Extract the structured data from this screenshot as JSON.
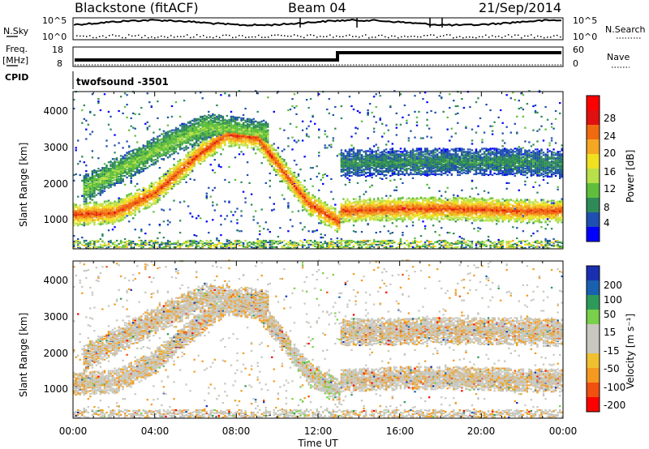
{
  "header": {
    "station": "Blackstone (fitACF)",
    "beam": "Beam 04",
    "date": "21/Sep/2014"
  },
  "strips": {
    "nsky": {
      "label": "N.Sky",
      "ticks": [
        "10^5",
        "10^0"
      ],
      "right_label": "N.Search",
      "right_ticks": [
        "10^5",
        "10^0"
      ]
    },
    "freq": {
      "label_line1": "Freq.",
      "label_line2": "[MHz]",
      "ticks": [
        "18",
        "8"
      ],
      "right_label": "Nave",
      "right_ticks": [
        "60",
        "0"
      ]
    },
    "cpid": {
      "label": "CPID",
      "value": "twofsound -3501"
    }
  },
  "chart_data": [
    {
      "type": "heatmap",
      "panel": "power",
      "title": "",
      "ylabel": "Slant Range [km]",
      "xlabel": "",
      "y_ticks": [
        "1000",
        "2000",
        "3000",
        "4000"
      ],
      "ylim": [
        180,
        4500
      ],
      "xlim_hours": [
        0,
        24
      ],
      "colorbar": {
        "label": "Power [dB]",
        "ticks": [
          "4",
          "8",
          "12",
          "16",
          "20",
          "24",
          "28"
        ],
        "range": [
          0,
          30
        ],
        "colors": [
          "#0000ff",
          "#1f4fb0",
          "#2e8b57",
          "#5fbf3c",
          "#b8e04a",
          "#f0e020",
          "#f5a623",
          "#f06a10",
          "#e01010",
          "#ff0000"
        ]
      },
      "echo_bands": [
        {
          "name": "near_range_band",
          "t_start": 0,
          "t_end": 13,
          "r_center": [
            1100,
            1150,
            1700,
            2700,
            3300,
            3200,
            1400,
            900
          ],
          "t_knots": [
            0,
            2,
            4,
            6,
            7.5,
            9,
            11.5,
            13
          ],
          "peak_db": 24
        },
        {
          "name": "high_range_band",
          "t_start": 0.5,
          "t_end": 9.5,
          "r_center": [
            1800,
            2400,
            3000,
            3500,
            3300
          ],
          "t_knots": [
            0.5,
            2.5,
            4.5,
            6.5,
            9.5
          ],
          "peak_db": 12
        },
        {
          "name": "afternoon_band",
          "t_start": 13,
          "t_end": 24,
          "r_center": [
            1200,
            1250,
            1250,
            1200,
            1200
          ],
          "t_knots": [
            13,
            16,
            19,
            22,
            24
          ],
          "peak_db": 24
        },
        {
          "name": "afternoon_upper",
          "t_start": 13,
          "t_end": 24,
          "r_center": [
            2500,
            2550,
            2550,
            2500
          ],
          "t_knots": [
            13,
            17,
            21,
            24
          ],
          "peak_db": 8
        }
      ]
    },
    {
      "type": "heatmap",
      "panel": "velocity",
      "title": "",
      "ylabel": "Slant Range [km]",
      "xlabel": "Time UT",
      "x_ticks": [
        "00:00",
        "04:00",
        "08:00",
        "12:00",
        "16:00",
        "20:00",
        "00:00"
      ],
      "y_ticks": [
        "1000",
        "2000",
        "3000",
        "4000"
      ],
      "ylim": [
        180,
        4500
      ],
      "xlim_hours": [
        0,
        24
      ],
      "colorbar": {
        "label": "Velocity [m s⁻¹]",
        "ticks": [
          "200",
          "100",
          "50",
          "15",
          "-15",
          "-50",
          "-100",
          "-200"
        ],
        "range": [
          -250,
          250
        ],
        "colors": [
          "#ff0000",
          "#f05010",
          "#f59a20",
          "#f0c030",
          "#c8c8c0",
          "#c8c8c0",
          "#7ad04a",
          "#2e9a5a",
          "#1a60b0",
          "#1a2fb0"
        ]
      }
    }
  ]
}
